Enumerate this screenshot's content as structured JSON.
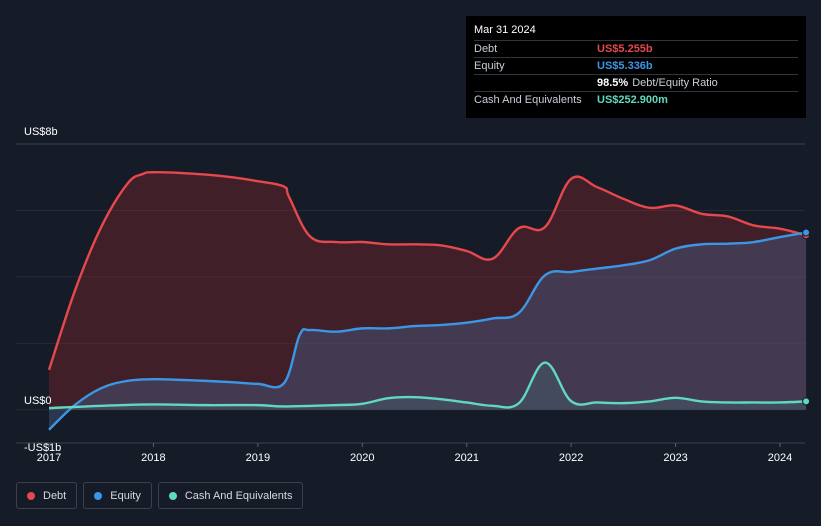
{
  "tooltip": {
    "date": "Mar 31 2024",
    "debt_label": "Debt",
    "debt_value": "US$5.255b",
    "equity_label": "Equity",
    "equity_value": "US$5.336b",
    "ratio_value": "98.5%",
    "ratio_label": "Debt/Equity Ratio",
    "cash_label": "Cash And Equivalents",
    "cash_value": "US$252.900m"
  },
  "legend": {
    "debt": "Debt",
    "equity": "Equity",
    "cash": "Cash And Equivalents"
  },
  "colors": {
    "debt": "#e5484d",
    "equity": "#3b97e6",
    "cash": "#5fd9c0",
    "background": "#151b27",
    "grid": "#2b313c"
  },
  "chart_data": {
    "type": "area",
    "y_unit": "US$ billions",
    "ylim": [
      -1,
      8
    ],
    "y_ticks": [
      {
        "value": 8,
        "label": "US$8b"
      },
      {
        "value": 0,
        "label": "US$0"
      },
      {
        "value": -1,
        "label": "-US$1b"
      }
    ],
    "xlim": [
      2017,
      2024.25
    ],
    "x_ticks": [
      "2017",
      "2018",
      "2019",
      "2020",
      "2021",
      "2022",
      "2023",
      "2024"
    ],
    "grid": true,
    "legend_position": "bottom-left",
    "series": [
      {
        "name": "Debt",
        "color": "#e5484d",
        "x": [
          2017.0,
          2017.25,
          2017.5,
          2017.75,
          2017.9,
          2018.0,
          2018.25,
          2018.5,
          2018.75,
          2019.0,
          2019.25,
          2019.3,
          2019.5,
          2019.75,
          2020.0,
          2020.25,
          2020.5,
          2020.75,
          2021.0,
          2021.25,
          2021.5,
          2021.75,
          2022.0,
          2022.25,
          2022.5,
          2022.75,
          2023.0,
          2023.25,
          2023.5,
          2023.75,
          2024.0,
          2024.25
        ],
        "y": [
          1.2,
          3.6,
          5.5,
          6.8,
          7.1,
          7.15,
          7.13,
          7.08,
          7.0,
          6.88,
          6.72,
          6.4,
          5.22,
          5.05,
          5.05,
          4.98,
          4.98,
          4.95,
          4.78,
          4.55,
          5.47,
          5.5,
          6.95,
          6.7,
          6.35,
          6.08,
          6.15,
          5.9,
          5.82,
          5.55,
          5.45,
          5.255
        ]
      },
      {
        "name": "Equity",
        "color": "#3b97e6",
        "x": [
          2017.0,
          2017.25,
          2017.5,
          2017.75,
          2018.0,
          2018.25,
          2018.5,
          2018.75,
          2019.0,
          2019.25,
          2019.4,
          2019.5,
          2019.75,
          2020.0,
          2020.25,
          2020.5,
          2020.75,
          2021.0,
          2021.25,
          2021.5,
          2021.75,
          2022.0,
          2022.25,
          2022.5,
          2022.75,
          2023.0,
          2023.25,
          2023.5,
          2023.75,
          2024.0,
          2024.25
        ],
        "y": [
          -0.6,
          0.15,
          0.65,
          0.87,
          0.92,
          0.9,
          0.87,
          0.83,
          0.78,
          0.8,
          2.25,
          2.4,
          2.35,
          2.45,
          2.45,
          2.52,
          2.55,
          2.62,
          2.75,
          2.92,
          4.05,
          4.15,
          4.25,
          4.35,
          4.5,
          4.85,
          4.98,
          5.0,
          5.05,
          5.2,
          5.336
        ]
      },
      {
        "name": "Cash And Equivalents",
        "color": "#5fd9c0",
        "x": [
          2017.0,
          2017.5,
          2018.0,
          2018.5,
          2019.0,
          2019.25,
          2019.75,
          2020.0,
          2020.25,
          2020.5,
          2020.75,
          2021.0,
          2021.25,
          2021.5,
          2021.75,
          2022.0,
          2022.25,
          2022.5,
          2022.75,
          2023.0,
          2023.25,
          2023.5,
          2023.75,
          2024.0,
          2024.25
        ],
        "y": [
          0.05,
          0.12,
          0.16,
          0.14,
          0.14,
          0.1,
          0.14,
          0.18,
          0.35,
          0.38,
          0.32,
          0.22,
          0.12,
          0.2,
          1.42,
          0.26,
          0.22,
          0.2,
          0.25,
          0.36,
          0.25,
          0.22,
          0.22,
          0.22,
          0.2529
        ]
      }
    ]
  }
}
